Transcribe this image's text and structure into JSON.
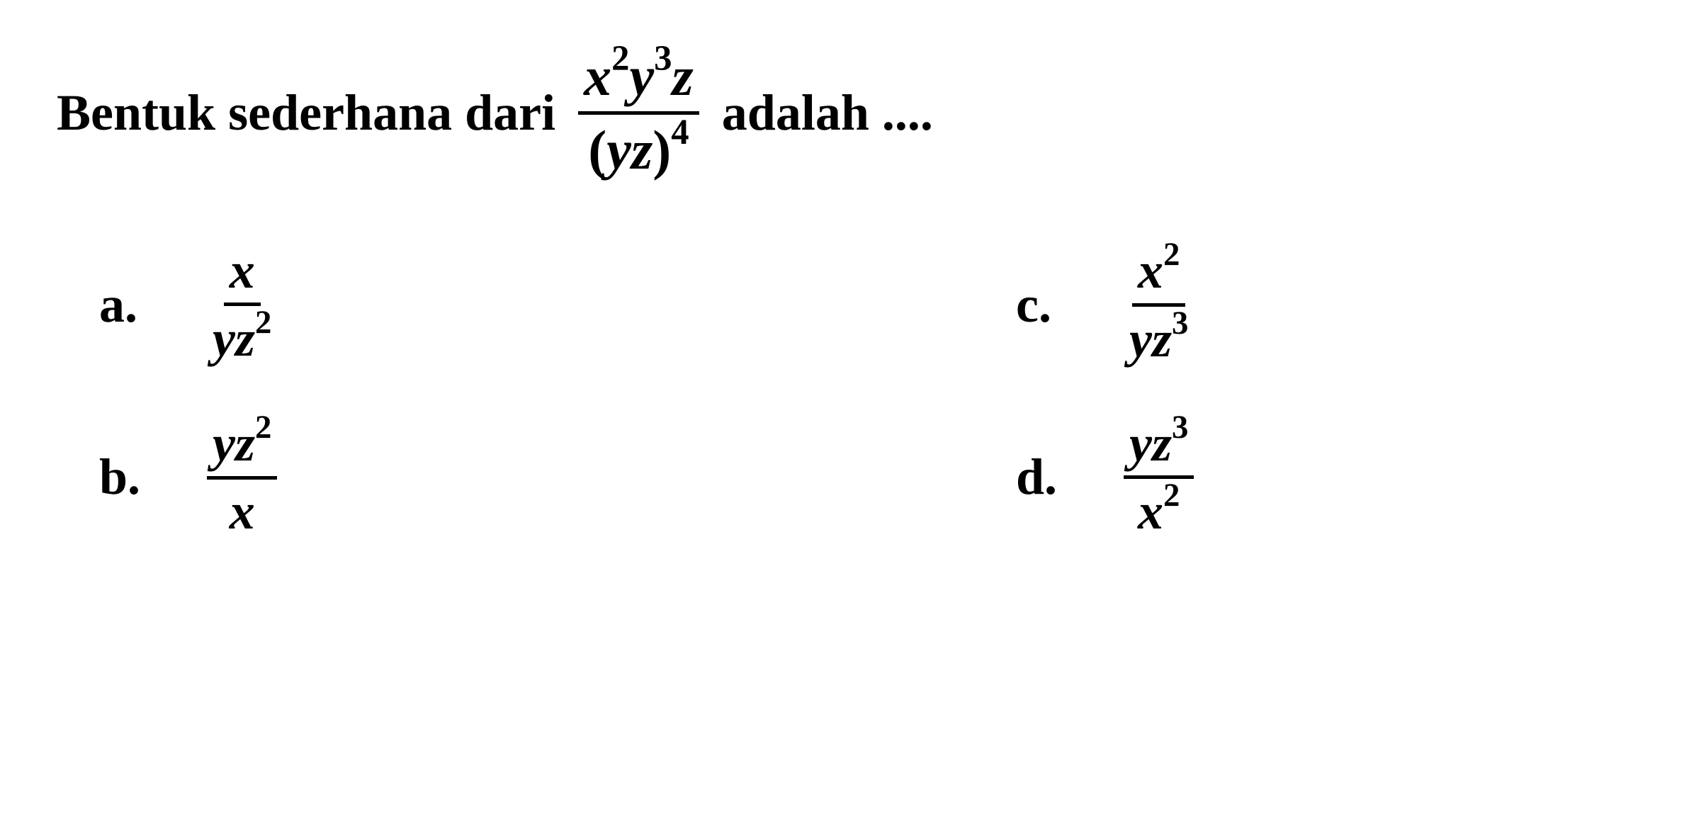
{
  "question": {
    "prefix": "Bentuk sederhana dari",
    "suffix": "adalah ....",
    "main_fraction": {
      "num_x_exp": "2",
      "num_y_exp": "3",
      "den_exp": "4"
    }
  },
  "options": {
    "a": {
      "label": "a.",
      "num": "x",
      "den_var1": "yz",
      "den_exp": "2"
    },
    "b": {
      "label": "b.",
      "num_var": "yz",
      "num_exp": "2",
      "den": "x"
    },
    "c": {
      "label": "c.",
      "num_var": "x",
      "num_exp": "2",
      "den_var": "yz",
      "den_exp": "3"
    },
    "d": {
      "label": "d.",
      "num_var": "yz",
      "num_exp": "3",
      "den_var": "x",
      "den_exp": "2"
    }
  },
  "style": {
    "font_family": "Times New Roman",
    "text_color": "#000000",
    "background_color": "#ffffff",
    "question_fontsize": 72,
    "option_fontsize": 72,
    "fraction_fontsize": 78,
    "font_weight": "bold",
    "fraction_bar_width": 5
  }
}
